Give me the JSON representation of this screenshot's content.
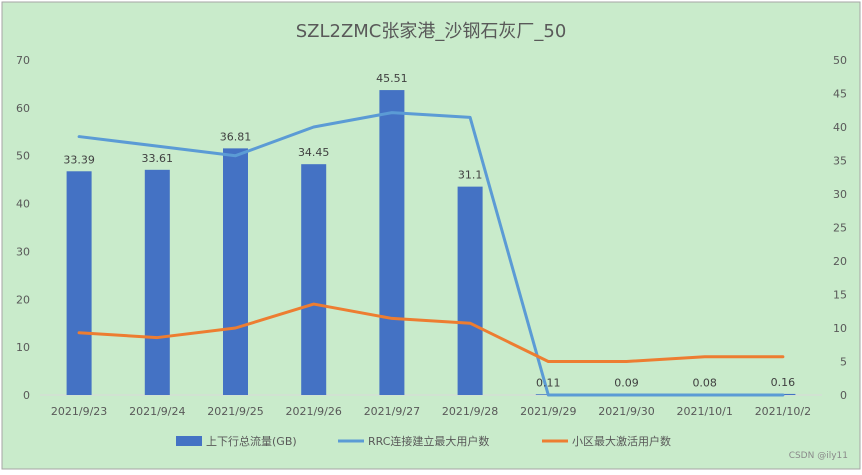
{
  "chart_data": {
    "type": "bar",
    "title": "SZL2ZMC张家港_沙钢石灰厂_50",
    "categories": [
      "2021/9/23",
      "2021/9/24",
      "2021/9/25",
      "2021/9/26",
      "2021/9/27",
      "2021/9/28",
      "2021/9/29",
      "2021/9/30",
      "2021/10/1",
      "2021/10/2"
    ],
    "y_left": {
      "min": 0,
      "max": 70,
      "ticks": [
        "0",
        "10",
        "20",
        "30",
        "40",
        "50",
        "60",
        "70"
      ]
    },
    "y_right": {
      "min": 0,
      "max": 50,
      "ticks": [
        "0",
        "5",
        "10",
        "15",
        "20",
        "25",
        "30",
        "35",
        "40",
        "45",
        "50"
      ]
    },
    "grid": false,
    "legend_position": "bottom",
    "series": [
      {
        "name": "上下行总流量(GB)",
        "kind": "bar",
        "axis": "right",
        "color": "#4472C4",
        "values": [
          33.39,
          33.61,
          36.81,
          34.45,
          45.51,
          31.1,
          0.11,
          0.09,
          0.08,
          0.16
        ],
        "labels": [
          "33.39",
          "33.61",
          "36.81",
          "34.45",
          "45.51",
          "31.1",
          "0.11",
          "0.09",
          "0.08",
          "0.16"
        ]
      },
      {
        "name": "RRC连接建立最大用户数",
        "kind": "line",
        "axis": "left",
        "color": "#5B9BD5",
        "values": [
          54,
          52,
          50,
          56,
          59,
          58,
          0,
          0,
          0,
          0
        ]
      },
      {
        "name": "小区最大激活用户数",
        "kind": "line",
        "axis": "left",
        "color": "#ED7D31",
        "values": [
          13,
          12,
          14,
          19,
          16,
          15,
          7,
          7,
          8,
          8
        ]
      }
    ]
  },
  "watermark": "CSDN @ily11",
  "colors": {
    "background": "#C9EBCB",
    "border": "#A6A6A6"
  }
}
